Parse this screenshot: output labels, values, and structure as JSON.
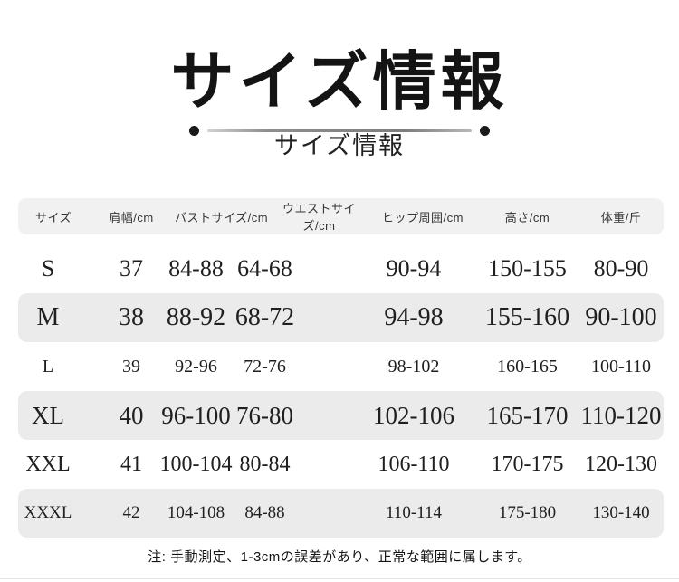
{
  "header": {
    "title": "サイズ情報",
    "subtitle": "サイズ情報"
  },
  "table": {
    "headers": [
      "サイズ",
      "肩幅/cm",
      "バストサイズ/cm",
      "ウエストサイズ/cm",
      "ヒップ周囲/cm",
      "高さ/cm",
      "体重/斤"
    ],
    "rows": [
      {
        "size": "S",
        "shoulder": "37",
        "bust": "84-88",
        "waist": "64-68",
        "hip": "90-94",
        "height": "150-155",
        "weight": "80-90"
      },
      {
        "size": "M",
        "shoulder": "38",
        "bust": "88-92",
        "waist": "68-72",
        "hip": "94-98",
        "height": "155-160",
        "weight": "90-100"
      },
      {
        "size": "L",
        "shoulder": "39",
        "bust": "92-96",
        "waist": "72-76",
        "hip": "98-102",
        "height": "160-165",
        "weight": "100-110"
      },
      {
        "size": "XL",
        "shoulder": "40",
        "bust": "96-100",
        "waist": "76-80",
        "hip": "102-106",
        "height": "165-170",
        "weight": "110-120"
      },
      {
        "size": "XXL",
        "shoulder": "41",
        "bust": "100-104",
        "waist": "80-84",
        "hip": "106-110",
        "height": "170-175",
        "weight": "120-130"
      },
      {
        "size": "XXXL",
        "shoulder": "42",
        "bust": "104-108",
        "waist": "84-88",
        "hip": "110-114",
        "height": "175-180",
        "weight": "130-140"
      }
    ]
  },
  "footer": {
    "note": "注: 手動測定、1-3cmの誤差があり、正常な範囲に属します。"
  },
  "colors": {
    "header_bg": "#f1f1f1",
    "stripe_bg": "#ebebeb",
    "text": "#1a1a1a",
    "divider_line": "#8f8f8f",
    "divider_dot": "#1a1a1a"
  }
}
